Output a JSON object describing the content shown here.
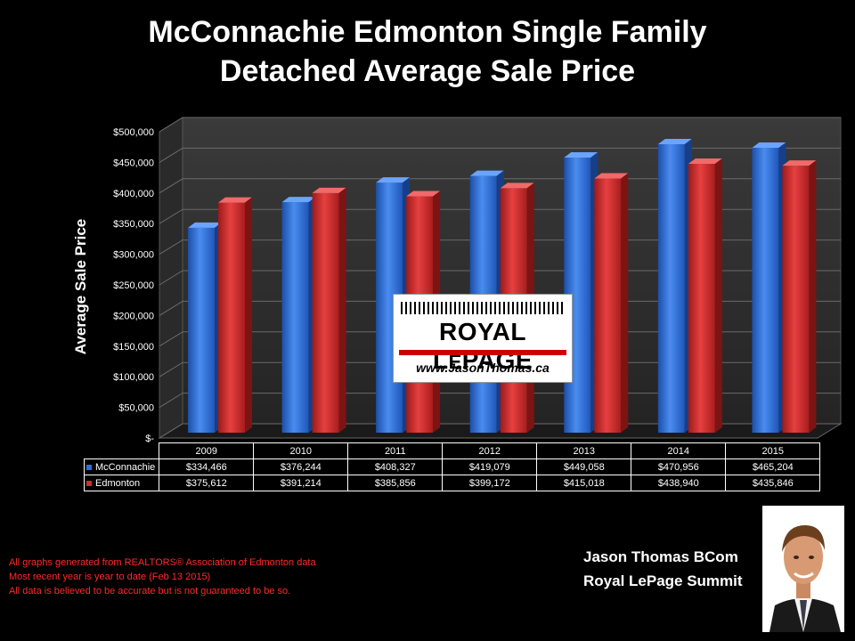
{
  "title_line1": "McConnachie Edmonton Single Family",
  "title_line2": "Detached Average Sale Price",
  "logo": {
    "brand": "ROYAL LePAGE",
    "url": "www.JasonThomas.ca"
  },
  "notes": [
    "All graphs generated from REALTORS® Association of Edmonton data",
    "Most recent year is year to date (Feb 13 2015)",
    "All data is believed to be accurate but is not guaranteed to be so."
  ],
  "agent": {
    "name": "Jason Thomas BCom",
    "company": "Royal LePage Summit"
  },
  "chart_data": {
    "type": "bar",
    "ylabel": "Average Sale Price",
    "ylim": [
      0,
      500000
    ],
    "y_ticks": [
      "$-",
      "$50,000",
      "$100,000",
      "$150,000",
      "$200,000",
      "$250,000",
      "$300,000",
      "$350,000",
      "$400,000",
      "$450,000",
      "$500,000"
    ],
    "categories": [
      "2009",
      "2010",
      "2011",
      "2012",
      "2013",
      "2014",
      "2015"
    ],
    "grid": true,
    "legend": "data table below chart",
    "series": [
      {
        "name": "McConnachie",
        "color": "#2f6fd6",
        "values": [
          334466,
          376244,
          408327,
          419079,
          449058,
          470956,
          465204
        ],
        "labels": [
          "$334,466",
          "$376,244",
          "$408,327",
          "$419,079",
          "$449,058",
          "$470,956",
          "$465,204"
        ]
      },
      {
        "name": "Edmonton",
        "color": "#d42a2a",
        "values": [
          375612,
          391214,
          385856,
          399172,
          415018,
          438940,
          435846
        ],
        "labels": [
          "$375,612",
          "$391,214",
          "$385,856",
          "$399,172",
          "$415,018",
          "$438,940",
          "$435,846"
        ]
      }
    ]
  }
}
